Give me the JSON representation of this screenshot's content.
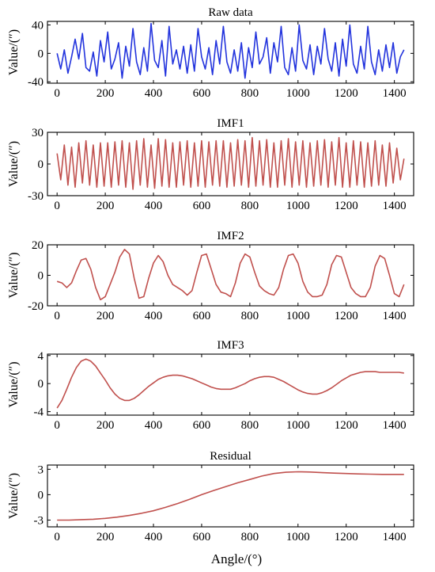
{
  "figure": {
    "xlabel": "Angle/(°)"
  },
  "chart_data": [
    {
      "type": "line",
      "title": "Raw data",
      "ylabel": "Value/(″)",
      "xlim": [
        -40,
        1480
      ],
      "ylim": [
        -42,
        45
      ],
      "xticks": [
        0,
        200,
        400,
        600,
        800,
        1000,
        1200,
        1400
      ],
      "yticks": [
        -40,
        0,
        40
      ],
      "color": "#2233dd",
      "grid": false,
      "series": [
        {
          "x": [
            0,
            15,
            30,
            45,
            60,
            75,
            90,
            105,
            120,
            135,
            150,
            165,
            180,
            195,
            210,
            225,
            240,
            255,
            270,
            285,
            300,
            315,
            330,
            345,
            360,
            375,
            390,
            405,
            420,
            435,
            450,
            465,
            480,
            495,
            510,
            525,
            540,
            555,
            570,
            585,
            600,
            615,
            630,
            645,
            660,
            675,
            690,
            705,
            720,
            735,
            750,
            765,
            780,
            795,
            810,
            825,
            840,
            855,
            870,
            885,
            900,
            915,
            930,
            945,
            960,
            975,
            990,
            1005,
            1020,
            1035,
            1050,
            1065,
            1080,
            1095,
            1110,
            1125,
            1140,
            1155,
            1170,
            1185,
            1200,
            1215,
            1230,
            1245,
            1260,
            1275,
            1290,
            1305,
            1320,
            1335,
            1350,
            1365,
            1380,
            1395,
            1410,
            1425,
            1440
          ],
          "y": [
            0,
            -22,
            5,
            -28,
            -5,
            20,
            -8,
            28,
            -20,
            -25,
            2,
            -32,
            18,
            -12,
            30,
            -22,
            -8,
            15,
            -35,
            10,
            -18,
            35,
            -12,
            -30,
            8,
            -25,
            42,
            -10,
            -20,
            18,
            -32,
            38,
            -15,
            5,
            -22,
            10,
            -28,
            12,
            -25,
            35,
            -5,
            -22,
            8,
            -30,
            18,
            -15,
            38,
            -12,
            -28,
            5,
            -25,
            15,
            -35,
            8,
            -20,
            30,
            -15,
            -5,
            22,
            -28,
            15,
            -12,
            38,
            -20,
            -30,
            8,
            -25,
            40,
            -10,
            -22,
            12,
            -30,
            10,
            -15,
            35,
            -8,
            -25,
            15,
            -32,
            20,
            -18,
            40,
            -15,
            -28,
            10,
            -22,
            38,
            -12,
            -30,
            5,
            -25,
            12,
            -20,
            15,
            -28,
            -5,
            5
          ]
        }
      ]
    },
    {
      "type": "line",
      "title": "IMF1",
      "ylabel": "Value/(″)",
      "xlim": [
        -40,
        1480
      ],
      "ylim": [
        -30,
        30
      ],
      "xticks": [
        0,
        200,
        400,
        600,
        800,
        1000,
        1200,
        1400
      ],
      "yticks": [
        -30,
        0,
        30
      ],
      "color": "#c0504d",
      "grid": false,
      "series": [
        {
          "x": [
            0,
            15,
            30,
            45,
            60,
            75,
            90,
            105,
            120,
            135,
            150,
            165,
            180,
            195,
            210,
            225,
            240,
            255,
            270,
            285,
            300,
            315,
            330,
            345,
            360,
            375,
            390,
            405,
            420,
            435,
            450,
            465,
            480,
            495,
            510,
            525,
            540,
            555,
            570,
            585,
            600,
            615,
            630,
            645,
            660,
            675,
            690,
            705,
            720,
            735,
            750,
            765,
            780,
            795,
            810,
            825,
            840,
            855,
            870,
            885,
            900,
            915,
            930,
            945,
            960,
            975,
            990,
            1005,
            1020,
            1035,
            1050,
            1065,
            1080,
            1095,
            1110,
            1125,
            1140,
            1155,
            1170,
            1185,
            1200,
            1215,
            1230,
            1245,
            1260,
            1275,
            1290,
            1305,
            1320,
            1335,
            1350,
            1365,
            1380,
            1395,
            1410,
            1425,
            1440
          ],
          "y": [
            10,
            -15,
            18,
            -20,
            16,
            -22,
            20,
            -18,
            22,
            -20,
            18,
            -22,
            20,
            -21,
            20,
            -22,
            21,
            -20,
            22,
            -22,
            20,
            -24,
            22,
            -20,
            24,
            -22,
            18,
            -23,
            24,
            -21,
            23,
            -22,
            20,
            -22,
            21,
            -20,
            22,
            -22,
            20,
            -21,
            22,
            -22,
            21,
            -20,
            22,
            -21,
            22,
            -22,
            20,
            -21,
            23,
            -20,
            22,
            -22,
            25,
            -21,
            22,
            -20,
            23,
            -22,
            20,
            -22,
            22,
            -20,
            24,
            -22,
            21,
            -20,
            22,
            -22,
            20,
            -21,
            22,
            -20,
            23,
            -22,
            21,
            -20,
            25,
            -22,
            20,
            -22,
            22,
            -20,
            21,
            -22,
            20,
            -21,
            22,
            -20,
            18,
            -21,
            20,
            -18,
            15,
            -15,
            5
          ]
        }
      ]
    },
    {
      "type": "line",
      "title": "IMF2",
      "ylabel": "Value/(″)",
      "xlim": [
        -40,
        1480
      ],
      "ylim": [
        -20,
        20
      ],
      "xticks": [
        0,
        200,
        400,
        600,
        800,
        1000,
        1200,
        1400
      ],
      "yticks": [
        -20,
        0,
        20
      ],
      "color": "#c0504d",
      "grid": false,
      "series": [
        {
          "x": [
            0,
            20,
            40,
            60,
            80,
            100,
            120,
            140,
            160,
            180,
            200,
            220,
            240,
            260,
            280,
            300,
            320,
            340,
            360,
            380,
            400,
            420,
            440,
            460,
            480,
            500,
            520,
            540,
            560,
            580,
            600,
            620,
            640,
            660,
            680,
            700,
            720,
            740,
            760,
            780,
            800,
            820,
            840,
            860,
            880,
            900,
            920,
            940,
            960,
            980,
            1000,
            1020,
            1040,
            1060,
            1080,
            1100,
            1120,
            1140,
            1160,
            1180,
            1200,
            1220,
            1240,
            1260,
            1280,
            1300,
            1320,
            1340,
            1360,
            1380,
            1400,
            1420,
            1440
          ],
          "y": [
            -4,
            -5,
            -8,
            -5,
            3,
            10,
            11,
            4,
            -8,
            -16,
            -14,
            -6,
            2,
            12,
            17,
            14,
            -2,
            -15,
            -14,
            -2,
            8,
            13,
            9,
            0,
            -6,
            -8,
            -10,
            -13,
            -10,
            2,
            13,
            14,
            4,
            -6,
            -11,
            -12,
            -14,
            -5,
            8,
            14,
            12,
            2,
            -7,
            -10,
            -12,
            -13,
            -8,
            4,
            13,
            14,
            8,
            -4,
            -11,
            -14,
            -14,
            -13,
            -6,
            7,
            13,
            12,
            2,
            -8,
            -12,
            -14,
            -14,
            -8,
            6,
            13,
            11,
            0,
            -12,
            -14,
            -6
          ]
        }
      ]
    },
    {
      "type": "line",
      "title": "IMF3",
      "ylabel": "Value/(″)",
      "xlim": [
        -40,
        1480
      ],
      "ylim": [
        -4.5,
        4.2
      ],
      "xticks": [
        0,
        200,
        400,
        600,
        800,
        1000,
        1200,
        1400
      ],
      "yticks": [
        -4,
        0,
        4
      ],
      "color": "#c0504d",
      "grid": false,
      "series": [
        {
          "x": [
            0,
            20,
            40,
            60,
            80,
            100,
            120,
            140,
            160,
            180,
            200,
            220,
            240,
            260,
            280,
            300,
            320,
            340,
            360,
            380,
            400,
            420,
            440,
            460,
            480,
            500,
            520,
            540,
            560,
            580,
            600,
            620,
            640,
            660,
            680,
            700,
            720,
            740,
            760,
            780,
            800,
            820,
            840,
            860,
            880,
            900,
            920,
            940,
            960,
            980,
            1000,
            1020,
            1040,
            1060,
            1080,
            1100,
            1120,
            1140,
            1160,
            1180,
            1200,
            1220,
            1240,
            1260,
            1280,
            1300,
            1320,
            1340,
            1360,
            1380,
            1400,
            1420,
            1440
          ],
          "y": [
            -3.5,
            -2.4,
            -0.8,
            0.9,
            2.3,
            3.2,
            3.5,
            3.2,
            2.5,
            1.5,
            0.5,
            -0.6,
            -1.5,
            -2.1,
            -2.4,
            -2.4,
            -2.1,
            -1.6,
            -1,
            -0.4,
            0.1,
            0.6,
            0.9,
            1.1,
            1.2,
            1.2,
            1.1,
            0.9,
            0.7,
            0.4,
            0.1,
            -0.2,
            -0.5,
            -0.7,
            -0.8,
            -0.8,
            -0.8,
            -0.6,
            -0.3,
            0,
            0.4,
            0.7,
            0.9,
            1,
            1,
            0.9,
            0.6,
            0.3,
            -0.1,
            -0.5,
            -0.9,
            -1.2,
            -1.4,
            -1.5,
            -1.5,
            -1.3,
            -1,
            -0.6,
            -0.1,
            0.4,
            0.8,
            1.2,
            1.4,
            1.6,
            1.7,
            1.7,
            1.7,
            1.6,
            1.6,
            1.6,
            1.6,
            1.6,
            1.5
          ]
        }
      ]
    },
    {
      "type": "line",
      "title": "Residual",
      "ylabel": "Value/(″)",
      "xlim": [
        -40,
        1480
      ],
      "ylim": [
        -3.8,
        3.5
      ],
      "xticks": [
        0,
        200,
        400,
        600,
        800,
        1000,
        1200,
        1400
      ],
      "yticks": [
        -3,
        0,
        3
      ],
      "color": "#c0504d",
      "grid": false,
      "series": [
        {
          "x": [
            0,
            50,
            100,
            150,
            200,
            250,
            300,
            350,
            400,
            450,
            500,
            550,
            600,
            650,
            700,
            750,
            800,
            850,
            900,
            950,
            1000,
            1050,
            1100,
            1150,
            1200,
            1250,
            1300,
            1350,
            1400,
            1440
          ],
          "y": [
            -3,
            -3,
            -2.95,
            -2.9,
            -2.8,
            -2.65,
            -2.45,
            -2.2,
            -1.9,
            -1.5,
            -1.05,
            -0.55,
            0,
            0.5,
            0.95,
            1.4,
            1.8,
            2.2,
            2.5,
            2.65,
            2.7,
            2.68,
            2.6,
            2.55,
            2.5,
            2.45,
            2.42,
            2.4,
            2.4,
            2.4
          ]
        }
      ]
    }
  ]
}
